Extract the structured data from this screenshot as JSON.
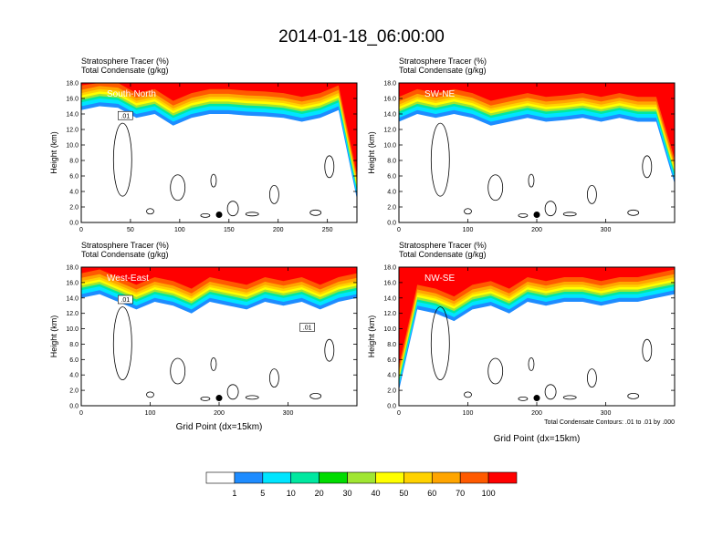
{
  "title": "2014-01-18_06:00:00",
  "colors": {
    "scale": [
      "#ffffff",
      "#1e8cff",
      "#00e5ff",
      "#00e8a0",
      "#00dc00",
      "#a0e632",
      "#ffff00",
      "#ffd200",
      "#ffa500",
      "#ff5a00",
      "#ff0000"
    ],
    "contour": "#000000"
  },
  "colorbar": {
    "labels": [
      "1",
      "5",
      "10",
      "20",
      "30",
      "40",
      "50",
      "60",
      "70",
      "100"
    ]
  },
  "contour_note": "Total Condensate Contours: .01 to .01 by .000",
  "chart_data": [
    {
      "type": "heatmap",
      "panel": "south-north",
      "label": "South-North",
      "left_title_line1": "Stratosphere Tracer   (%)",
      "left_title_line2": "Total Condensate   (g/kg)",
      "ylabel": "Height (km)",
      "xlabel": "",
      "xlim": [
        0,
        280
      ],
      "ylim": [
        0,
        18
      ],
      "xticks": [
        0,
        50,
        100,
        150,
        200,
        250
      ],
      "yticks": [
        "0.0",
        "2.0",
        "4.0",
        "6.0",
        "8.0",
        "10.0",
        "12.0",
        "14.0",
        "16.0",
        "18.0"
      ],
      "tracer_layer_base_km": [
        15.5,
        16.0,
        15.8,
        14.5,
        15.0,
        13.5,
        14.5,
        15.0,
        15.0,
        14.8,
        14.7,
        14.5,
        14.0,
        14.5,
        15.5,
        4.0
      ],
      "contour_labels": [
        ".01"
      ],
      "marker": {
        "x": 140,
        "y": 1.0
      }
    },
    {
      "type": "heatmap",
      "panel": "sw-ne",
      "label": "SW-NE",
      "left_title_line1": "Stratosphere Tracer   (%)",
      "left_title_line2": "Total Condensate   (g/kg)",
      "ylabel": "Height (km)",
      "xlabel": "",
      "xlim": [
        0,
        400
      ],
      "ylim": [
        0,
        18
      ],
      "xticks": [
        0,
        100,
        200,
        300
      ],
      "yticks": [
        "0.0",
        "2.0",
        "4.0",
        "6.0",
        "8.0",
        "10.0",
        "12.0",
        "14.0",
        "16.0",
        "18.0"
      ],
      "tracer_layer_base_km": [
        14.0,
        15.0,
        14.5,
        15.0,
        14.5,
        13.5,
        14.0,
        14.5,
        14.0,
        14.2,
        14.5,
        14.0,
        14.5,
        14.0,
        14.0,
        6.0
      ],
      "contour_labels": [],
      "marker": {
        "x": 200,
        "y": 1.0
      }
    },
    {
      "type": "heatmap",
      "panel": "west-east",
      "label": "West-East",
      "left_title_line1": "Stratosphere Tracer   (%)",
      "left_title_line2": "Total Condensate   (g/kg)",
      "ylabel": "Height (km)",
      "xlabel": "Grid Point (dx=15km)",
      "xlim": [
        0,
        400
      ],
      "ylim": [
        0,
        18
      ],
      "xticks": [
        0,
        100,
        200,
        300
      ],
      "yticks": [
        "0.0",
        "2.0",
        "4.0",
        "6.0",
        "8.0",
        "10.0",
        "12.0",
        "14.0",
        "16.0",
        "18.0"
      ],
      "tracer_layer_base_km": [
        15.0,
        15.5,
        14.5,
        13.5,
        14.5,
        14.0,
        13.0,
        14.5,
        14.0,
        13.5,
        14.5,
        14.0,
        14.5,
        13.5,
        14.5,
        15.0
      ],
      "contour_labels": [
        ".01",
        ".01"
      ],
      "marker": {
        "x": 200,
        "y": 1.0
      }
    },
    {
      "type": "heatmap",
      "panel": "nw-se",
      "label": "NW-SE",
      "left_title_line1": "Stratosphere Tracer   (%)",
      "left_title_line2": "Total Condensate   (g/kg)",
      "ylabel": "Height (km)",
      "xlabel": "Grid Point (dx=15km)",
      "xlim": [
        0,
        400
      ],
      "ylim": [
        0,
        18
      ],
      "xticks": [
        0,
        100,
        200,
        300
      ],
      "yticks": [
        "0.0",
        "2.0",
        "4.0",
        "6.0",
        "8.0",
        "10.0",
        "12.0",
        "14.0",
        "16.0",
        "18.0"
      ],
      "tracer_layer_base_km": [
        3.0,
        13.5,
        13.0,
        12.0,
        13.5,
        14.0,
        13.0,
        14.5,
        14.0,
        14.5,
        14.5,
        14.0,
        14.5,
        14.5,
        15.0,
        15.5
      ],
      "contour_labels": [],
      "marker": {
        "x": 200,
        "y": 1.0
      }
    }
  ]
}
